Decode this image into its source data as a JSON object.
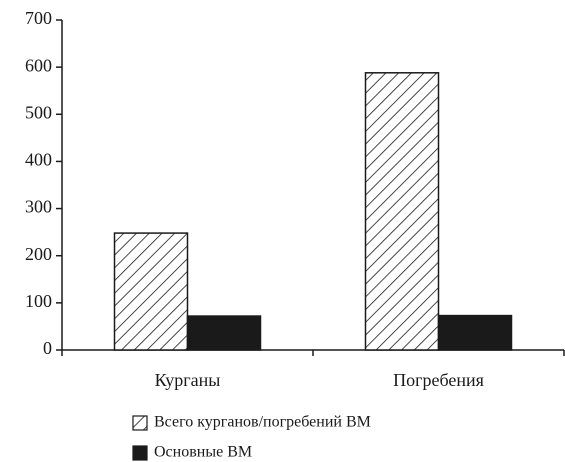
{
  "chart_data": {
    "type": "bar",
    "categories": [
      "Курганы",
      "Погребения"
    ],
    "series": [
      {
        "name": "Всего курганов/погребений ВМ",
        "color": "#1a1a1a",
        "fill": "hatch",
        "values": [
          248,
          588
        ]
      },
      {
        "name": "Основные ВМ",
        "color": "#1a1a1a",
        "fill": "solid",
        "values": [
          72,
          73
        ]
      }
    ],
    "ylim": [
      0,
      700
    ],
    "yticks": [
      0,
      100,
      200,
      300,
      400,
      500,
      600,
      700
    ],
    "grid": false
  }
}
